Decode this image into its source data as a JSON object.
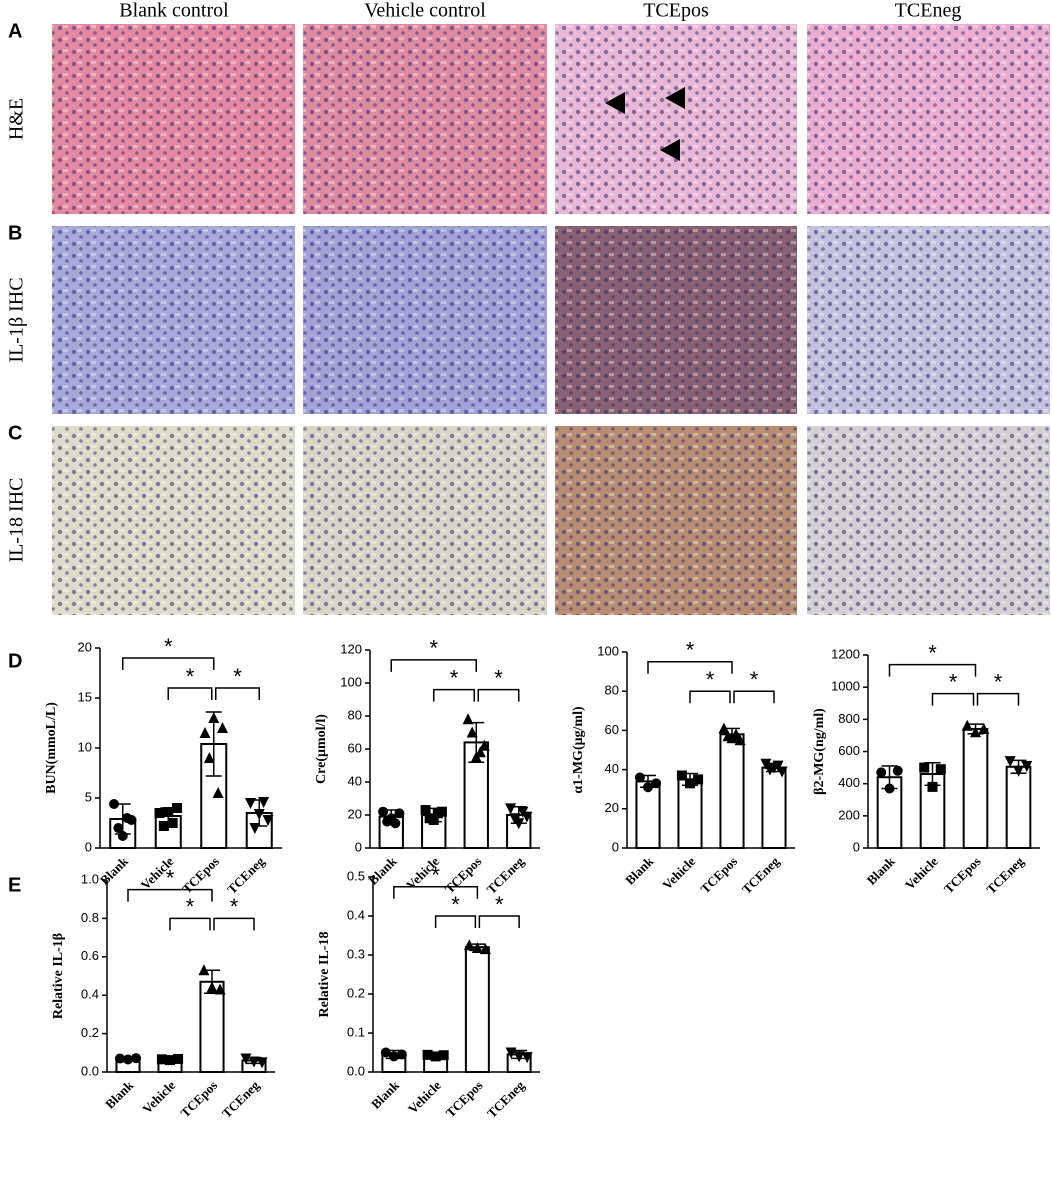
{
  "figure": {
    "panel_labels": [
      "A",
      "B",
      "C",
      "D",
      "E"
    ],
    "column_titles": [
      "Blank control",
      "Vehicle control",
      "TCEpos",
      "TCEneg"
    ],
    "row_labels": [
      "H&E",
      "IL-1β IHC",
      "IL-18 IHC"
    ]
  },
  "chart_data": [
    {
      "type": "bar",
      "ylabel": "BUN(mmoL/L)",
      "categories": [
        "Blank",
        "Vehicle",
        "TCEpos",
        "TCEneg"
      ],
      "values": [
        2.9,
        3.2,
        10.4,
        3.5
      ],
      "errors": [
        1.5,
        0.8,
        3.2,
        1.3
      ],
      "points": [
        [
          4.4,
          2.0,
          1.2,
          3.0,
          2.8
        ],
        [
          3.5,
          2.2,
          3.6,
          2.5,
          4.0
        ],
        [
          11.5,
          9.0,
          13.0,
          5.5,
          12.0
        ],
        [
          4.5,
          2.0,
          3.4,
          4.6,
          2.8
        ]
      ],
      "markers": [
        "circle",
        "square",
        "triangle",
        "triangle-down"
      ],
      "ylim": [
        0,
        20
      ],
      "yticks": [
        0,
        5,
        10,
        15,
        20
      ],
      "annotations": [
        "*",
        "*",
        "*"
      ]
    },
    {
      "type": "bar",
      "ylabel": "Cre(μmol/l)",
      "categories": [
        "Blank",
        "Vehicle",
        "TCEpos",
        "TCEneg"
      ],
      "values": [
        19,
        20,
        64,
        20
      ],
      "errors": [
        4,
        4,
        12,
        5
      ],
      "points": [
        [
          22,
          16,
          18,
          15,
          21
        ],
        [
          23,
          18,
          17,
          21,
          22
        ],
        [
          78,
          70,
          55,
          58,
          62
        ],
        [
          24,
          18,
          15,
          22,
          19
        ]
      ],
      "markers": [
        "circle",
        "square",
        "triangle",
        "triangle-down"
      ],
      "ylim": [
        0,
        120
      ],
      "yticks": [
        0,
        20,
        40,
        60,
        80,
        100,
        120
      ],
      "annotations": [
        "*",
        "*",
        "*"
      ]
    },
    {
      "type": "bar",
      "ylabel": "α1-MG(μg/ml)",
      "categories": [
        "Blank",
        "Vehicle",
        "TCEpos",
        "TCEneg"
      ],
      "values": [
        34,
        35,
        58,
        41
      ],
      "errors": [
        3,
        3,
        3,
        2
      ],
      "points": [
        [
          36,
          31,
          33
        ],
        [
          37,
          33,
          35
        ],
        [
          61,
          57,
          56,
          58,
          55
        ],
        [
          43,
          40,
          41,
          42,
          39
        ]
      ],
      "markers": [
        "circle",
        "square",
        "triangle",
        "triangle-down"
      ],
      "ylim": [
        0,
        100
      ],
      "yticks": [
        0,
        20,
        40,
        60,
        80,
        100
      ],
      "annotations": [
        "*",
        "*",
        "*"
      ]
    },
    {
      "type": "bar",
      "ylabel": "β2-MG(ng/ml)",
      "categories": [
        "Blank",
        "Vehicle",
        "TCEpos",
        "TCEneg"
      ],
      "values": [
        440,
        460,
        740,
        505
      ],
      "errors": [
        70,
        70,
        30,
        40
      ],
      "points": [
        [
          470,
          370,
          480
        ],
        [
          500,
          380,
          490
        ],
        [
          760,
          720,
          740
        ],
        [
          540,
          480,
          510
        ]
      ],
      "markers": [
        "circle",
        "square",
        "triangle",
        "triangle-down"
      ],
      "ylim": [
        0,
        1200
      ],
      "yticks": [
        0,
        200,
        400,
        600,
        800,
        1000,
        1200
      ],
      "annotations": [
        "*",
        "*",
        "*"
      ]
    },
    {
      "type": "bar",
      "ylabel": "Relative IL-1β",
      "categories": [
        "Blank",
        "Vehicle",
        "TCEpos",
        "TCEneg"
      ],
      "values": [
        0.07,
        0.065,
        0.47,
        0.06
      ],
      "errors": [
        0.01,
        0.01,
        0.06,
        0.015
      ],
      "points": [
        [
          0.07,
          0.065,
          0.072
        ],
        [
          0.066,
          0.062,
          0.068
        ],
        [
          0.53,
          0.44,
          0.43
        ],
        [
          0.07,
          0.055,
          0.05
        ]
      ],
      "markers": [
        "circle",
        "square",
        "triangle",
        "triangle-down"
      ],
      "ylim": [
        0,
        1.0
      ],
      "yticks": [
        {
          "value": 0,
          "label": "0.0"
        },
        0.2,
        0.4,
        0.6,
        0.8,
        {
          "value": 1,
          "label": "1.0"
        }
      ],
      "annotations": [
        "*",
        "*",
        "*"
      ]
    },
    {
      "type": "bar",
      "ylabel": "Relative IL-18",
      "categories": [
        "Blank",
        "Vehicle",
        "TCEpos",
        "TCEneg"
      ],
      "values": [
        0.045,
        0.042,
        0.32,
        0.045
      ],
      "errors": [
        0.01,
        0.005,
        0.008,
        0.01
      ],
      "points": [
        [
          0.05,
          0.04,
          0.045
        ],
        [
          0.044,
          0.04,
          0.043
        ],
        [
          0.325,
          0.318,
          0.315
        ],
        [
          0.05,
          0.04,
          0.038
        ]
      ],
      "markers": [
        "circle",
        "square",
        "triangle",
        "triangle-down"
      ],
      "ylim": [
        0,
        0.5
      ],
      "yticks": [
        {
          "value": 0,
          "label": "0.0"
        },
        0.1,
        0.2,
        0.3,
        0.4,
        0.5
      ],
      "annotations": [
        "*",
        "*",
        "*"
      ]
    }
  ]
}
